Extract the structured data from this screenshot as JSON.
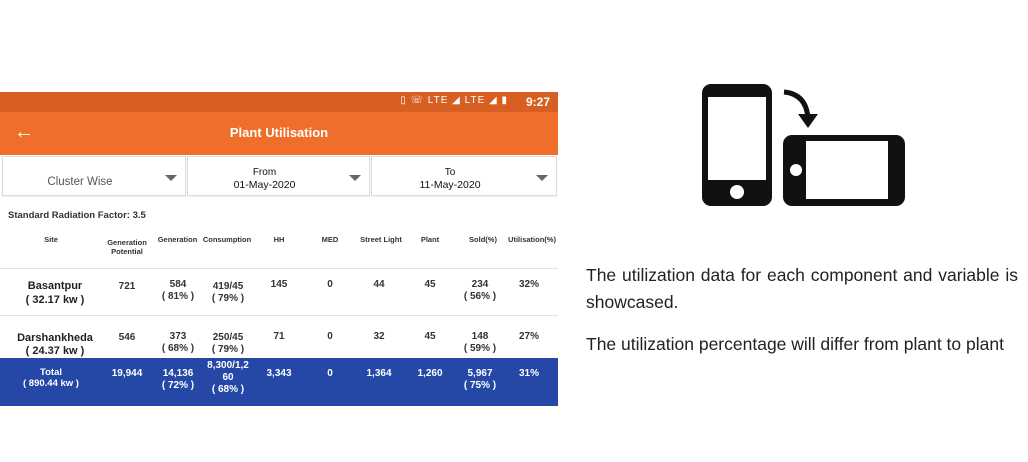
{
  "status_bar": {
    "icons": "▯ ☏ LTE ◢ LTE ◢ ▮",
    "time": "9:27"
  },
  "app_bar": {
    "back_icon": "←",
    "title": "Plant Utilisation"
  },
  "filters": {
    "cluster": "Cluster Wise",
    "from": {
      "caption": "From",
      "value": "01-May-2020"
    },
    "to": {
      "caption": "To",
      "value": "11-May-2020"
    }
  },
  "radiation_factor": "Standard Radiation Factor: 3.5",
  "table": {
    "headers": [
      "Site",
      "Generation Potential",
      "Generation",
      "Consumption",
      "HH",
      "MED",
      "Street Light",
      "Plant",
      "Sold(%)",
      "Utilisation(%)"
    ],
    "rows": [
      {
        "site": "Basantpur",
        "site_kw": "( 32.17 kw )",
        "gen_potential": "721",
        "generation": "584",
        "generation_pct": "( 81% )",
        "consumption": "419/45",
        "consumption_pct": "( 79% )",
        "hh": "145",
        "med": "0",
        "street_light": "44",
        "plant": "45",
        "sold": "234",
        "sold_pct": "( 56% )",
        "utilisation": "32%"
      },
      {
        "site": "Darshankheda",
        "site_kw": "( 24.37 kw )",
        "gen_potential": "546",
        "generation": "373",
        "generation_pct": "( 68% )",
        "consumption": "250/45",
        "consumption_pct": "( 79% )",
        "hh": "71",
        "med": "0",
        "street_light": "32",
        "plant": "45",
        "sold": "148",
        "sold_pct": "( 59% )",
        "utilisation": "27%"
      }
    ],
    "total": {
      "label": "Total",
      "kw": "( 890.44 kw )",
      "gen_potential": "19,944",
      "generation": "14,136",
      "generation_pct": "( 72% )",
      "consumption_l1": "8,300/1,2",
      "consumption_l2": "60",
      "consumption_pct": "( 68% )",
      "hh": "3,343",
      "med": "0",
      "street_light": "1,364",
      "plant": "1,260",
      "sold": "5,967",
      "sold_pct": "( 75% )",
      "utilisation": "31%"
    }
  },
  "description": {
    "p1": "The utilization data for each component and variable is showcased.",
    "p2": "The utilization percentage will differ from plant to plant"
  },
  "rotate_icon": "rotate-phone-icon"
}
